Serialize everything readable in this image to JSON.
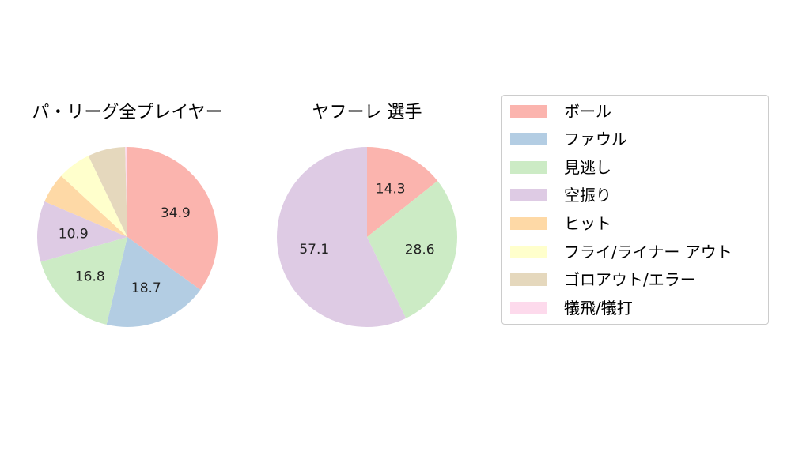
{
  "chart_data": [
    {
      "type": "pie",
      "title": "パ・リーグ全プレイヤー",
      "slices": [
        {
          "label": "ボール",
          "value": 34.9,
          "color": "#fbb4ae",
          "show_label": true
        },
        {
          "label": "ファウル",
          "value": 18.7,
          "color": "#b3cde3",
          "show_label": true
        },
        {
          "label": "見逃し",
          "value": 16.8,
          "color": "#ccebc5",
          "show_label": true
        },
        {
          "label": "空振り",
          "value": 10.9,
          "color": "#decbe4",
          "show_label": true
        },
        {
          "label": "ヒット",
          "value": 5.4,
          "color": "#fed9a6",
          "show_label": false
        },
        {
          "label": "フライ/ライナー アウト",
          "value": 6.0,
          "color": "#ffffcc",
          "show_label": false
        },
        {
          "label": "ゴロアウト/エラー",
          "value": 6.7,
          "color": "#e5d8bd",
          "show_label": false
        },
        {
          "label": "犠飛/犠打",
          "value": 0.4,
          "color": "#fddaec",
          "show_label": false
        }
      ],
      "data_labels": [
        "34.9",
        "18.7",
        "16.8",
        "10.9"
      ]
    },
    {
      "type": "pie",
      "title": "ヤフーレ  選手",
      "slices": [
        {
          "label": "ボール",
          "value": 14.3,
          "color": "#fbb4ae",
          "show_label": true
        },
        {
          "label": "見逃し",
          "value": 28.6,
          "color": "#ccebc5",
          "show_label": true
        },
        {
          "label": "空振り",
          "value": 57.1,
          "color": "#decbe4",
          "show_label": true
        }
      ],
      "data_labels": [
        "14.3",
        "28.6",
        "57.1"
      ]
    }
  ],
  "legend": {
    "placement": "right",
    "entries": [
      {
        "label": "ボール",
        "color": "#fbb4ae"
      },
      {
        "label": "ファウル",
        "color": "#b3cde3"
      },
      {
        "label": "見逃し",
        "color": "#ccebc5"
      },
      {
        "label": "空振り",
        "color": "#decbe4"
      },
      {
        "label": "ヒット",
        "color": "#fed9a6"
      },
      {
        "label": "フライ/ライナー アウト",
        "color": "#ffffcc"
      },
      {
        "label": "ゴロアウト/エラー",
        "color": "#e5d8bd"
      },
      {
        "label": "犠飛/犠打",
        "color": "#fddaec"
      }
    ]
  }
}
